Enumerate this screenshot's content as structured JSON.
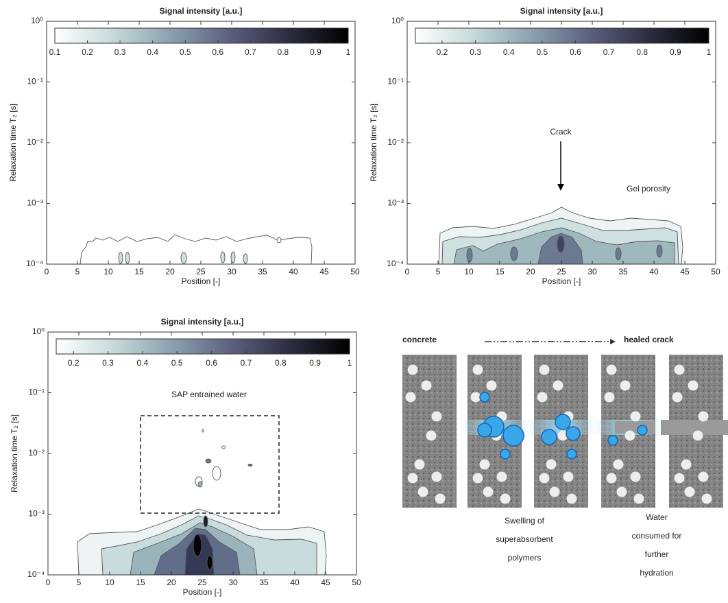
{
  "chart_data": [
    {
      "type": "contour",
      "title": "Signal intensity [a.u.]",
      "x_label": "Position [-]",
      "y_label": "Relaxation time T₂ [s]",
      "xlim": [
        0,
        50
      ],
      "xticks": [
        0,
        5,
        10,
        15,
        20,
        25,
        30,
        35,
        40,
        45,
        50
      ],
      "ylim": [
        0.0001,
        1
      ],
      "log_y": true,
      "yticks": [
        {
          "value": 0.0001,
          "label": "10⁻⁴"
        },
        {
          "value": 0.001,
          "label": "10⁻³"
        },
        {
          "value": 0.01,
          "label": "10⁻²"
        },
        {
          "value": 0.1,
          "label": "10⁻¹"
        },
        {
          "value": 1,
          "label": "10⁰"
        }
      ],
      "clim": [
        0.1,
        1
      ],
      "cticks": [
        0.1,
        0.2,
        0.3,
        0.4,
        0.5,
        0.6,
        0.7,
        0.8,
        0.9,
        1
      ],
      "colormap": [
        "#ffffff",
        "#c5d9d9",
        "#8a9fae",
        "#5b5f7e",
        "#2c2c40",
        "#000000"
      ],
      "annotations": []
    },
    {
      "type": "contour",
      "title": "Signal intensity [a.u.]",
      "x_label": "Position [-]",
      "y_label": "Relaxation time T₂ [s]",
      "xlim": [
        0,
        50
      ],
      "xticks": [
        0,
        5,
        10,
        15,
        20,
        25,
        30,
        35,
        40,
        45,
        50
      ],
      "ylim": [
        0.0001,
        1
      ],
      "log_y": true,
      "yticks": [
        {
          "value": 0.0001,
          "label": "10⁻⁴"
        },
        {
          "value": 0.001,
          "label": "10⁻³"
        },
        {
          "value": 0.01,
          "label": "10⁻²"
        },
        {
          "value": 0.1,
          "label": "10⁻¹"
        },
        {
          "value": 1,
          "label": "10⁰"
        }
      ],
      "clim": [
        0.12,
        1
      ],
      "cticks": [
        0.2,
        0.3,
        0.4,
        0.5,
        0.6,
        0.7,
        0.8,
        0.9,
        1
      ],
      "colormap": [
        "#ffffff",
        "#c5d9d9",
        "#8a9fae",
        "#5b5f7e",
        "#2c2c40",
        "#000000"
      ],
      "annotations": [
        "Crack",
        "Gel porosity"
      ]
    },
    {
      "type": "contour",
      "title": "Signal intensity [a.u.]",
      "x_label": "Position [-]",
      "y_label": "Relaxation time T₂ [s]",
      "xlim": [
        0,
        50
      ],
      "xticks": [
        0,
        5,
        10,
        15,
        20,
        25,
        30,
        35,
        40,
        45,
        50
      ],
      "ylim": [
        0.0001,
        1
      ],
      "log_y": true,
      "yticks": [
        {
          "value": 0.0001,
          "label": "10⁻⁴"
        },
        {
          "value": 0.001,
          "label": "10⁻³"
        },
        {
          "value": 0.01,
          "label": "10⁻²"
        },
        {
          "value": 0.1,
          "label": "10⁻¹"
        },
        {
          "value": 1,
          "label": "10⁰"
        }
      ],
      "clim": [
        0.15,
        1
      ],
      "cticks": [
        0.2,
        0.3,
        0.4,
        0.5,
        0.6,
        0.7,
        0.8,
        0.9,
        1
      ],
      "colormap": [
        "#ffffff",
        "#c5d9d9",
        "#8a9fae",
        "#5b5f7e",
        "#2c2c40",
        "#000000"
      ],
      "annotations": [
        "SAP entrained water"
      ]
    }
  ],
  "diagram": {
    "start": "concrete",
    "end": "healed crack",
    "captions": [
      {
        "lines": [
          "Swelling of",
          "superabsorbent",
          "polymers"
        ]
      },
      {
        "lines": [
          "Water",
          "consumed for",
          "further",
          "hydration"
        ]
      }
    ]
  }
}
